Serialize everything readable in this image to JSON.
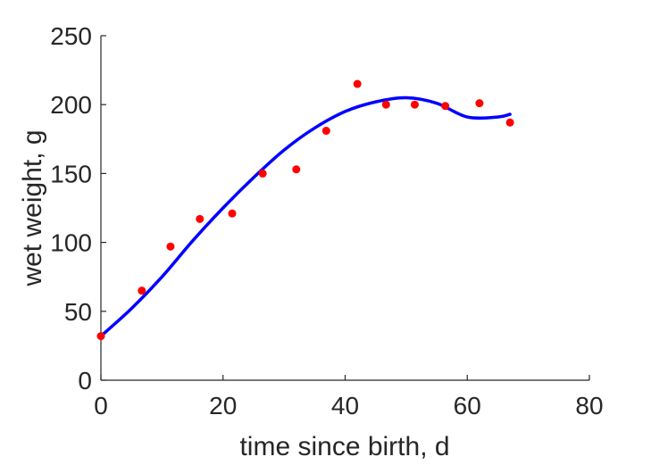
{
  "chart_data": {
    "type": "scatter",
    "title": "",
    "xlabel": "time since birth, d",
    "ylabel": "wet weight, g",
    "xlim": [
      0,
      80
    ],
    "ylim": [
      0,
      250
    ],
    "xticks": [
      0,
      20,
      40,
      60,
      80
    ],
    "yticks": [
      0,
      50,
      100,
      150,
      200,
      250
    ],
    "grid": false,
    "box": false,
    "series": [
      {
        "type": "scatter",
        "color": "#ff0000",
        "x": [
          0,
          6.7,
          11.4,
          16.2,
          21.5,
          26.5,
          32,
          36.9,
          42,
          46.7,
          51.4,
          56.4,
          62,
          67
        ],
        "y": [
          32,
          65,
          97,
          117,
          121,
          150,
          153,
          181,
          215,
          200,
          200,
          199,
          201,
          187
        ]
      },
      {
        "type": "line",
        "color": "#0000ff",
        "x": [
          0,
          5,
          10,
          15,
          20,
          25,
          30,
          35,
          40,
          45,
          50,
          55,
          60,
          65,
          67
        ],
        "y": [
          32,
          52,
          75,
          101,
          125,
          147,
          167,
          183,
          195,
          202,
          205,
          201,
          191,
          191,
          193
        ]
      }
    ]
  }
}
